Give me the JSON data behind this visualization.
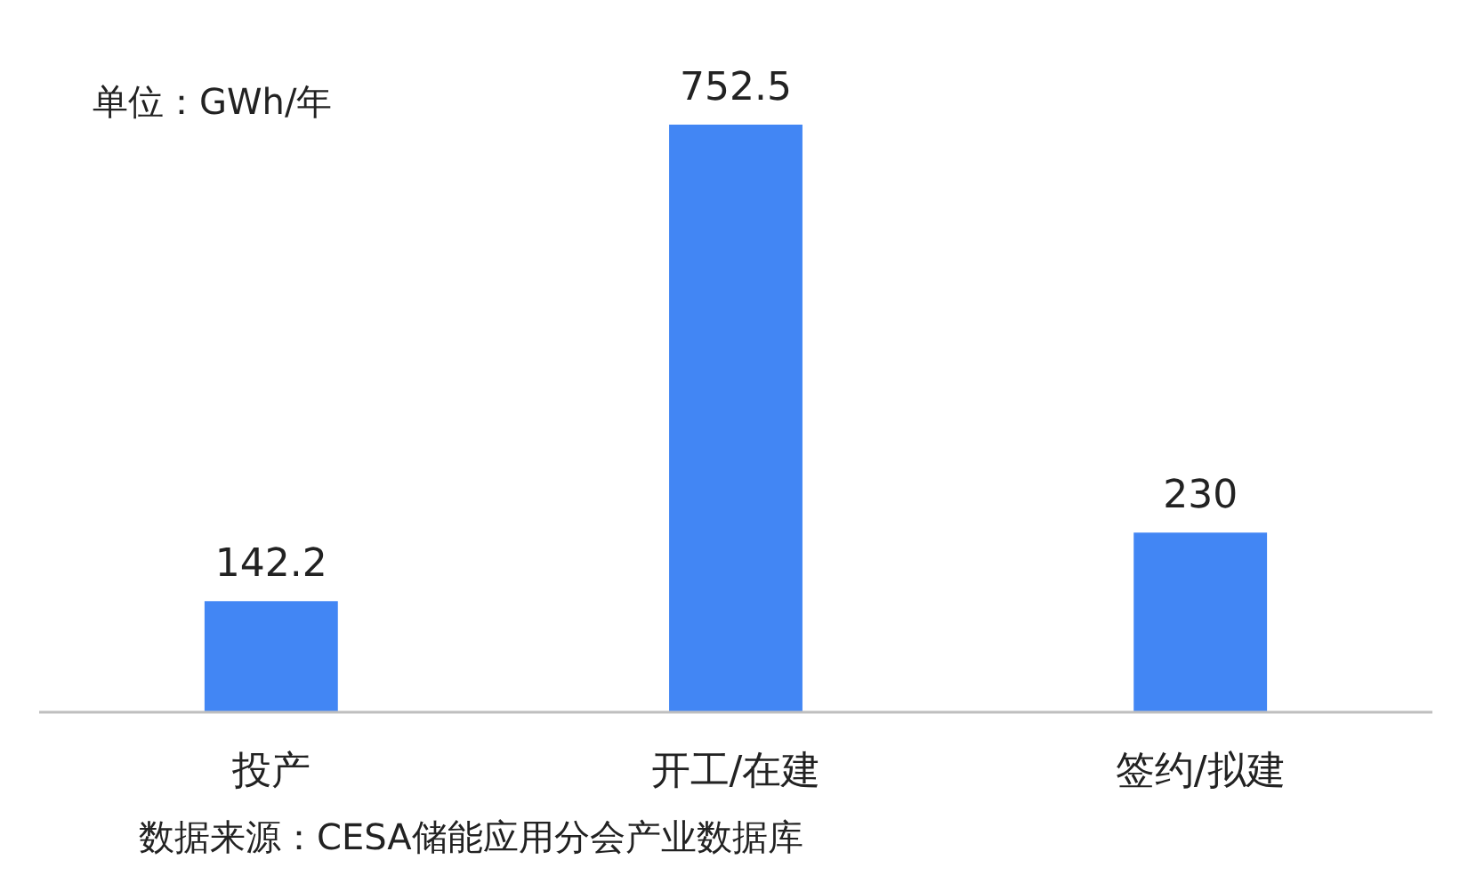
{
  "chart_data": {
    "type": "bar",
    "ylabel": "单位：GWh/年",
    "categories": [
      "投产",
      "开工/在建",
      "签约/拟建"
    ],
    "values": [
      142.2,
      752.5,
      230
    ],
    "color": "#4286f4",
    "data_labels": true,
    "annotations": [
      "数据来源：CESA储能应用分会产业数据库"
    ]
  }
}
